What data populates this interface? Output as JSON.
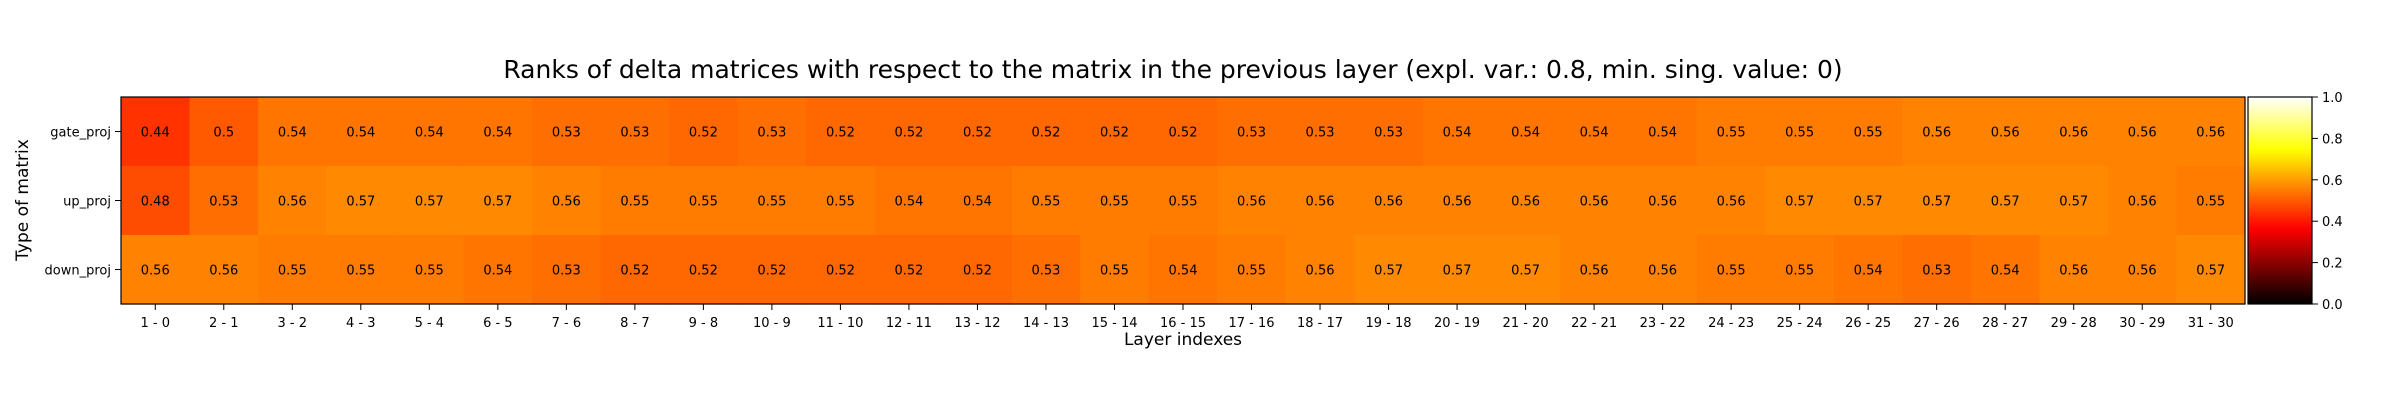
{
  "chart_data": {
    "type": "heatmap",
    "title": "Ranks of delta matrices with respect to the matrix in the previous layer (expl. var.: 0.8, min. sing. value: 0)",
    "xlabel": "Layer indexes",
    "ylabel": "Type of matrix",
    "x_categories": [
      "1 - 0",
      "2 - 1",
      "3 - 2",
      "4 - 3",
      "5 - 4",
      "6 - 5",
      "7 - 6",
      "8 - 7",
      "9 - 8",
      "10 - 9",
      "11 - 10",
      "12 - 11",
      "13 - 12",
      "14 - 13",
      "15 - 14",
      "16 - 15",
      "17 - 16",
      "18 - 17",
      "19 - 18",
      "20 - 19",
      "21 - 20",
      "22 - 21",
      "23 - 22",
      "24 - 23",
      "25 - 24",
      "26 - 25",
      "27 - 26",
      "28 - 27",
      "29 - 28",
      "30 - 29",
      "31 - 30"
    ],
    "y_categories": [
      "gate_proj",
      "up_proj",
      "down_proj"
    ],
    "values": [
      [
        0.44,
        0.5,
        0.54,
        0.54,
        0.54,
        0.54,
        0.53,
        0.53,
        0.52,
        0.53,
        0.52,
        0.52,
        0.52,
        0.52,
        0.52,
        0.52,
        0.53,
        0.53,
        0.53,
        0.54,
        0.54,
        0.54,
        0.54,
        0.55,
        0.55,
        0.55,
        0.56,
        0.56,
        0.56,
        0.56,
        0.56
      ],
      [
        0.48,
        0.53,
        0.56,
        0.57,
        0.57,
        0.57,
        0.56,
        0.55,
        0.55,
        0.55,
        0.55,
        0.54,
        0.54,
        0.55,
        0.55,
        0.55,
        0.56,
        0.56,
        0.56,
        0.56,
        0.56,
        0.56,
        0.56,
        0.56,
        0.57,
        0.57,
        0.57,
        0.57,
        0.57,
        0.56,
        0.55
      ],
      [
        0.56,
        0.56,
        0.55,
        0.55,
        0.55,
        0.54,
        0.53,
        0.52,
        0.52,
        0.52,
        0.52,
        0.52,
        0.52,
        0.53,
        0.55,
        0.54,
        0.55,
        0.56,
        0.57,
        0.57,
        0.57,
        0.56,
        0.56,
        0.55,
        0.55,
        0.54,
        0.53,
        0.54,
        0.56,
        0.56,
        0.57
      ]
    ],
    "colormap": "hot",
    "vmin": 0.0,
    "vmax": 1.0,
    "colorbar_ticks": [
      "0.0",
      "0.2",
      "0.4",
      "0.6",
      "0.8",
      "1.0"
    ]
  }
}
